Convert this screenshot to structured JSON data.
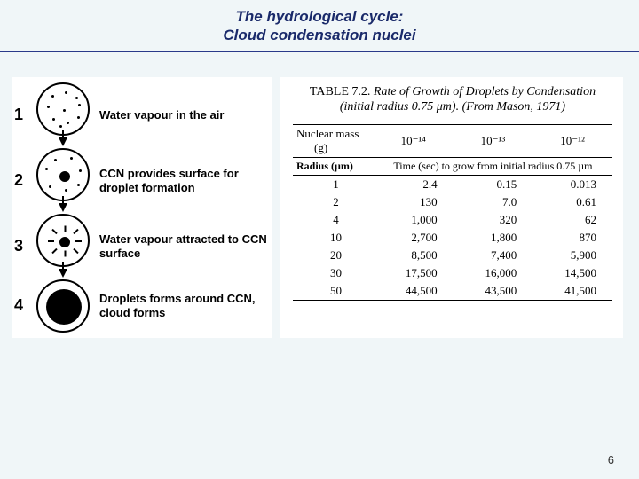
{
  "header": {
    "line1": "The hydrological cycle:",
    "line2": "Cloud condensation nuclei"
  },
  "stages": [
    {
      "num": "1",
      "label": "Water vapour in the air"
    },
    {
      "num": "2",
      "label": "CCN provides surface for droplet formation"
    },
    {
      "num": "3",
      "label": "Water vapour attracted to CCN surface"
    },
    {
      "num": "4",
      "label": "Droplets forms around CCN, cloud forms"
    }
  ],
  "table": {
    "title_prefix": "TABLE 7.2.",
    "title_rest": " Rate of Growth of Droplets by Condensation (initial radius 0.75 μm). (From Mason, 1971)",
    "nuclear_mass_label": "Nuclear mass",
    "nuclear_mass_unit": "(g)",
    "mass_cols": [
      "10⁻¹⁴",
      "10⁻¹³",
      "10⁻¹²"
    ],
    "radius_label": "Radius (µm)",
    "time_header": "Time (sec) to grow from initial radius 0.75 µm",
    "rows": [
      {
        "r": "1",
        "v": [
          "2.4",
          "0.15",
          "0.013"
        ]
      },
      {
        "r": "2",
        "v": [
          "130",
          "7.0",
          "0.61"
        ]
      },
      {
        "r": "4",
        "v": [
          "1,000",
          "320",
          "62"
        ]
      },
      {
        "r": "10",
        "v": [
          "2,700",
          "1,800",
          "870"
        ]
      },
      {
        "r": "20",
        "v": [
          "8,500",
          "7,400",
          "5,900"
        ]
      },
      {
        "r": "30",
        "v": [
          "17,500",
          "16,000",
          "14,500"
        ]
      },
      {
        "r": "50",
        "v": [
          "44,500",
          "43,500",
          "41,500"
        ]
      }
    ]
  },
  "page_number": "6",
  "colors": {
    "bg": "#f0f6f8",
    "title": "#1a2a6a",
    "rule": "#2a3a8a"
  }
}
